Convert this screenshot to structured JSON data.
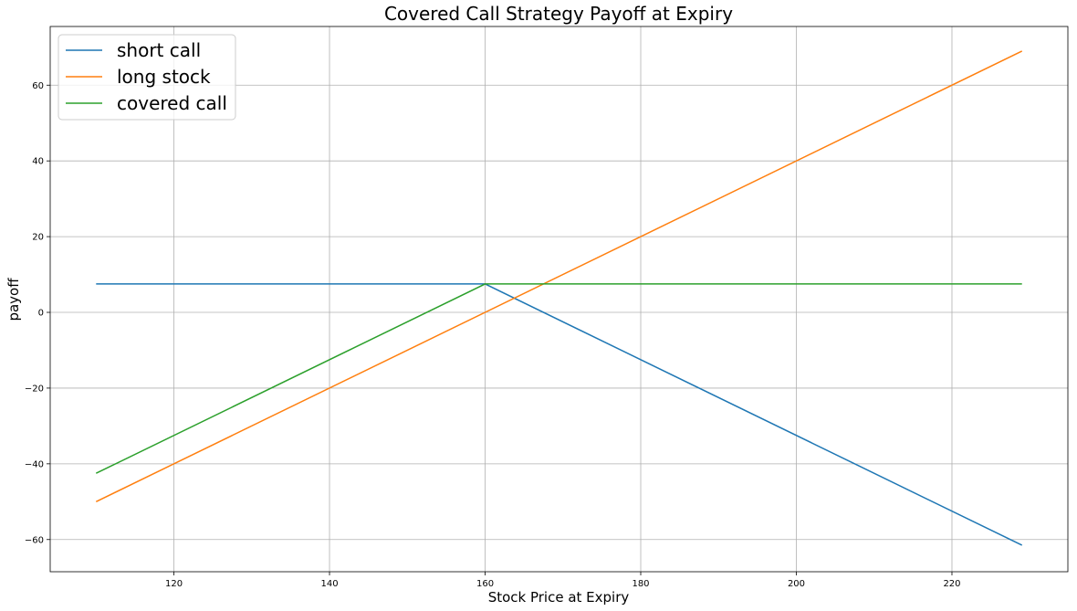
{
  "chart_data": {
    "type": "line",
    "title": "Covered Call Strategy Payoff at Expiry",
    "xlabel": "Stock Price at Expiry",
    "ylabel": "payoff",
    "xlim": [
      104.1,
      234.9
    ],
    "ylim": [
      -68.5,
      75.5
    ],
    "xticks": [
      120,
      140,
      160,
      180,
      200,
      220
    ],
    "yticks": [
      -60,
      -40,
      -20,
      0,
      20,
      40,
      60
    ],
    "grid": true,
    "legend_position": "top-left",
    "series": [
      {
        "name": "short call",
        "color": "#1f77b4",
        "x": [
          110,
          160,
          229
        ],
        "y": [
          7.5,
          7.5,
          -61.5
        ]
      },
      {
        "name": "long stock",
        "color": "#ff7f0e",
        "x": [
          110,
          229
        ],
        "y": [
          -50,
          69
        ]
      },
      {
        "name": "covered call",
        "color": "#2ca02c",
        "x": [
          110,
          160,
          229
        ],
        "y": [
          -42.5,
          7.5,
          7.5
        ]
      }
    ]
  }
}
